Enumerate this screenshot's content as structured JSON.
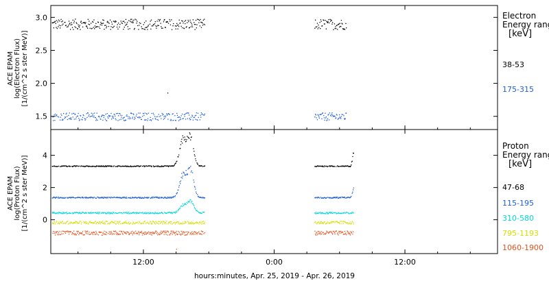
{
  "xlabel": "hours:minutes, Apr. 25, 2019 - Apr. 26, 2019",
  "x_ticks": [
    "12:00",
    "0:00",
    "12:00"
  ],
  "chart_data": [
    {
      "type": "scatter",
      "title": "",
      "ylabel_lines": [
        "ACE EPAM",
        "log(Electron Flux)",
        "[1/(cm^2 s ster MeV)]"
      ],
      "y_ticks": [
        1.5,
        2.0,
        2.5,
        3.0
      ],
      "ylim": [
        1.3,
        3.18
      ],
      "xlim_hours": [
        3.5,
        44.5
      ],
      "legend_title_lines": [
        "Electron",
        "Energy ranges"
      ],
      "legend_unit": "[keV]",
      "series": [
        {
          "name": "38-53",
          "color": "#000000",
          "segments": [
            [
              3.6,
              17.6
            ],
            [
              27.7,
              30.6
            ]
          ],
          "baseline": 2.9,
          "noise": 0.08,
          "spikes": []
        },
        {
          "name": "175-315",
          "color": "#1f5fd6",
          "segments": [
            [
              3.6,
              17.6
            ],
            [
              27.7,
              30.6
            ]
          ],
          "baseline": 1.5,
          "noise": 0.06,
          "spikes": []
        }
      ],
      "outliers": [
        {
          "x": 14.2,
          "y": 1.86,
          "color": "#000000"
        }
      ]
    },
    {
      "type": "scatter",
      "title": "",
      "ylabel_lines": [
        "ACE EPAM",
        "log(Proton Flux)",
        "[1/(cm^2 s ster MeV)]"
      ],
      "y_ticks": [
        0,
        2,
        4
      ],
      "ylim": [
        -2.1,
        5.6
      ],
      "xlim_hours": [
        3.5,
        44.5
      ],
      "legend_title_lines": [
        "Proton",
        "Energy ranges"
      ],
      "legend_unit": "[keV]",
      "series": [
        {
          "name": "47-68",
          "color": "#000000",
          "segments": [
            [
              3.6,
              17.6
            ],
            [
              27.7,
              31.3
            ]
          ],
          "baseline": 3.35,
          "noise": 0.03,
          "spikes": [
            {
              "center": 15.6,
              "width": 0.45,
              "amp": 1.6
            },
            {
              "center": 16.3,
              "width": 0.4,
              "amp": 1.7
            }
          ],
          "rise_end": {
            "start": 31.0,
            "amp": 1.0
          }
        },
        {
          "name": "115-195",
          "color": "#1f5fd6",
          "segments": [
            [
              3.6,
              17.6
            ],
            [
              27.7,
              31.3
            ]
          ],
          "baseline": 1.4,
          "noise": 0.04,
          "spikes": [
            {
              "center": 15.6,
              "width": 0.45,
              "amp": 1.4
            },
            {
              "center": 16.3,
              "width": 0.4,
              "amp": 1.6
            }
          ],
          "rise_end": {
            "start": 31.0,
            "amp": 0.6
          }
        },
        {
          "name": "310-580",
          "color": "#00d8d8",
          "segments": [
            [
              3.6,
              17.6
            ],
            [
              27.7,
              31.3
            ]
          ],
          "baseline": 0.45,
          "noise": 0.05,
          "spikes": [
            {
              "center": 15.6,
              "width": 0.45,
              "amp": 0.45
            },
            {
              "center": 16.3,
              "width": 0.4,
              "amp": 0.7
            }
          ],
          "rise_end": {
            "start": 31.0,
            "amp": 0.0
          }
        },
        {
          "name": "795-1193",
          "color": "#d4e000",
          "segments": [
            [
              3.6,
              17.6
            ],
            [
              27.7,
              31.3
            ]
          ],
          "baseline": -0.15,
          "noise": 0.09,
          "spikes": []
        },
        {
          "name": "1060-1900",
          "color": "#e8501a",
          "segments": [
            [
              3.6,
              17.6
            ],
            [
              27.7,
              31.3
            ]
          ],
          "baseline": -0.8,
          "noise": 0.13,
          "spikes": []
        }
      ],
      "outliers": [
        {
          "x": 15.0,
          "y": -1.8,
          "color": "#e8501a"
        }
      ]
    }
  ]
}
